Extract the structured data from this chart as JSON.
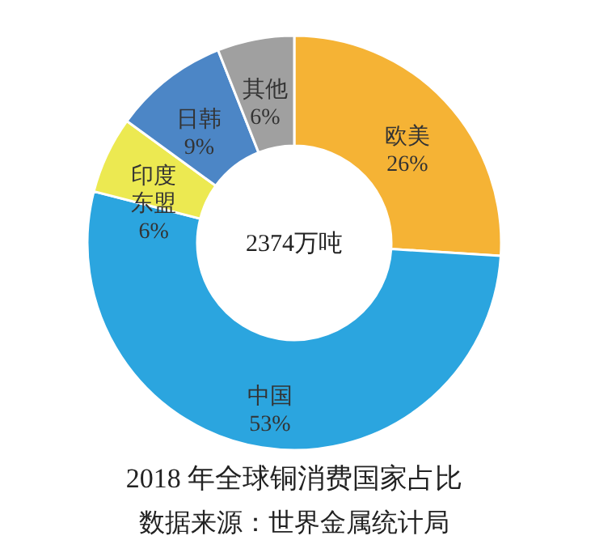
{
  "chart_data": {
    "type": "donut",
    "title": "2018 年全球铜消费国家占比",
    "categories": [
      "欧美",
      "中国",
      "印度东盟",
      "日韩",
      "其他"
    ],
    "values": [
      26,
      53,
      6,
      9,
      6
    ],
    "value_labels": [
      "26%",
      "53%",
      "6%",
      "9%",
      "6%"
    ],
    "colors": [
      "#f5b335",
      "#2ba5df",
      "#ece951",
      "#4c86c6",
      "#a0a0a0"
    ],
    "annotations": [
      "2374万吨",
      "数据来源：世界金属统计局"
    ]
  }
}
